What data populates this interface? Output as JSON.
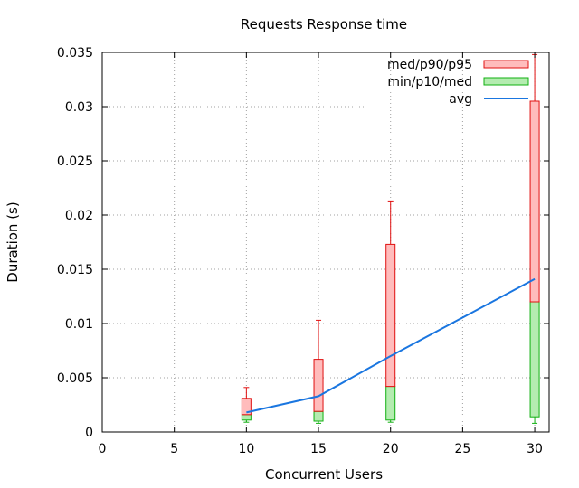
{
  "chart_data": {
    "type": "box-line",
    "title": "Requests Response time",
    "xlabel": "Concurrent Users",
    "ylabel": "Duration (s)",
    "xlim": [
      0,
      31
    ],
    "ylim": [
      0,
      0.035
    ],
    "x_ticks": [
      "0",
      "5",
      "10",
      "15",
      "20",
      "25",
      "30"
    ],
    "y_ticks": [
      "0",
      "0.005",
      "0.01",
      "0.015",
      "0.02",
      "0.025",
      "0.03",
      "0.035"
    ],
    "grid": true,
    "legend_position": "top-right",
    "legend": [
      {
        "label": "med/p90/p95",
        "kind": "box",
        "color": "#e01010",
        "fill": "#ffbcbc"
      },
      {
        "label": "min/p10/med",
        "kind": "box",
        "color": "#10b010",
        "fill": "#b4ecb0"
      },
      {
        "label": "avg",
        "kind": "line",
        "color": "#1a76e0"
      }
    ],
    "x": [
      10,
      15,
      20,
      30
    ],
    "series": [
      {
        "name": "min/p10/med",
        "min": [
          0.0009,
          0.0008,
          0.0009,
          0.0008
        ],
        "p10": [
          0.0011,
          0.001,
          0.0011,
          0.0014
        ],
        "med": [
          0.0016,
          0.0019,
          0.0042,
          0.012
        ]
      },
      {
        "name": "med/p90/p95",
        "med": [
          0.0016,
          0.0019,
          0.0042,
          0.012
        ],
        "p90": [
          0.0031,
          0.0067,
          0.0173,
          0.0305
        ],
        "p95": [
          0.0041,
          0.0103,
          0.0213,
          0.0348
        ]
      },
      {
        "name": "avg",
        "values": [
          0.0018,
          0.0033,
          0.007,
          0.0141
        ]
      }
    ]
  }
}
